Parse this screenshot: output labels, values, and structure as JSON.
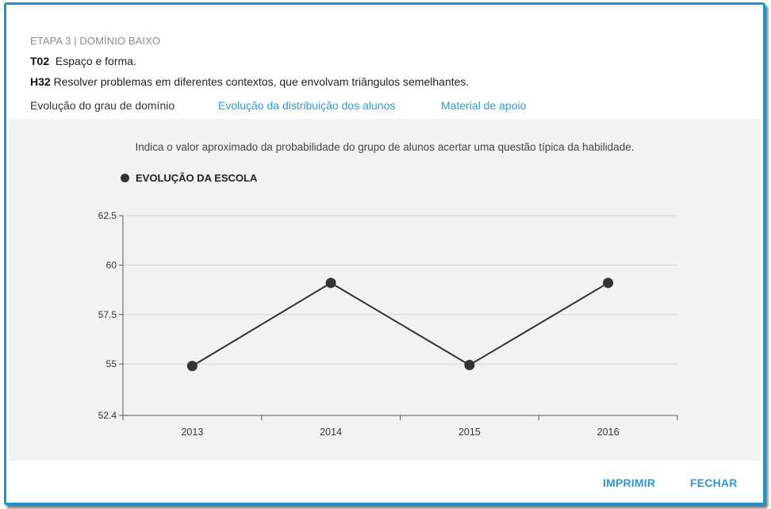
{
  "header": {
    "stage": "ETAPA 3 | DOMÍNIO BAIXO",
    "topic_code": "T02",
    "topic_text": "Espaço e forma.",
    "skill_code": "H32",
    "skill_text": "Resolver problemas em diferentes contextos, que envolvam triângulos semelhantes."
  },
  "tabs": [
    {
      "label": "Evolução do grau de domínio",
      "active": true
    },
    {
      "label": "Evolução da distribuição dos alunos",
      "active": false
    },
    {
      "label": "Material de apoio",
      "active": false
    }
  ],
  "description": "Indica o valor aproximado da probabilidade do grupo de alunos acertar uma questão típica da habilidade.",
  "chart_data": {
    "type": "line",
    "categories": [
      "2013",
      "2014",
      "2015",
      "2016"
    ],
    "series": [
      {
        "name": "EVOLUÇÃO DA ESCOLA",
        "values": [
          54.9,
          59.1,
          54.95,
          59.1
        ],
        "color": "#333333"
      }
    ],
    "yticks": [
      52.4,
      55,
      57.5,
      60,
      62.5
    ],
    "ylim": [
      52.4,
      62.5
    ],
    "grid": true,
    "legend_position": "top-left"
  },
  "footer": {
    "print_label": "IMPRIMIR",
    "close_label": "FECHAR"
  },
  "colors": {
    "accent": "#1d94cf",
    "link": "#2a9bd2",
    "panel_bg": "#f2f2f2",
    "series": "#333333"
  }
}
